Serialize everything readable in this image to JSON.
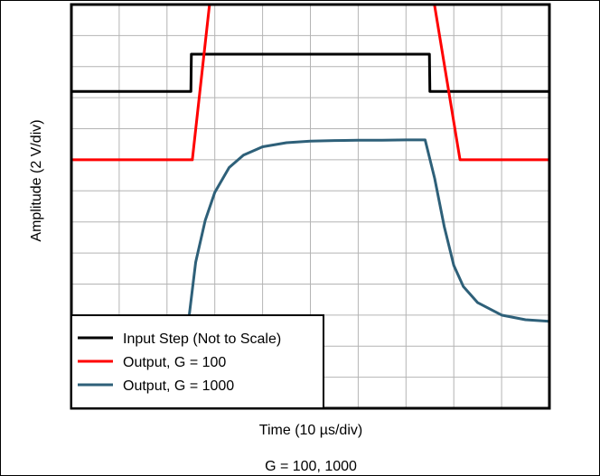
{
  "chart_data": {
    "type": "line",
    "xlabel": "Time (10 µs/div)",
    "ylabel": "Amplitude (2 V/div)",
    "caption": "G = 100, 1000",
    "grid": true,
    "x_divisions": 10,
    "y_divisions": 13,
    "xlim": [
      0,
      10
    ],
    "ylim": [
      0,
      13
    ],
    "legend_position": "bottom-left",
    "series": [
      {
        "name": "Input Step (Not to Scale)",
        "color": "#000000",
        "x": [
          0,
          2.5,
          2.51,
          7.49,
          7.5,
          10
        ],
        "y": [
          10.2,
          10.2,
          11.4,
          11.4,
          10.2,
          10.2
        ]
      },
      {
        "name": "Output, G = 100",
        "color": "#ff0000",
        "x": [
          0,
          2.53,
          2.94,
          7.52,
          8.13,
          10
        ],
        "y": [
          8.0,
          8.0,
          13.7,
          13.7,
          8.0,
          8.0
        ]
      },
      {
        "name": "Output, G = 1000",
        "color": "#2e6079",
        "x": [
          0,
          2.45,
          2.6,
          2.8,
          3.0,
          3.3,
          3.6,
          4.0,
          4.5,
          5.0,
          5.5,
          6.0,
          6.5,
          7.0,
          7.4,
          7.6,
          7.8,
          8.0,
          8.2,
          8.5,
          9.0,
          9.5,
          10
        ],
        "y": [
          2.8,
          2.8,
          4.7,
          6.05,
          6.95,
          7.75,
          8.15,
          8.42,
          8.55,
          8.6,
          8.62,
          8.63,
          8.63,
          8.64,
          8.64,
          7.4,
          5.85,
          4.6,
          3.92,
          3.4,
          3.0,
          2.85,
          2.8
        ]
      }
    ]
  }
}
